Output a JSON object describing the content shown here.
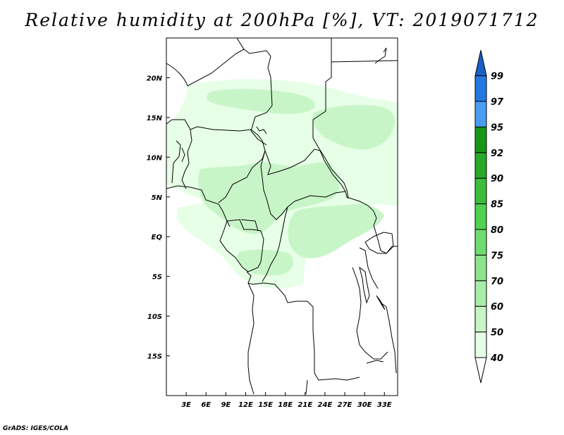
{
  "title": "Relative humidity at 200hPa [%], VT: 2019071712",
  "credit": "GrADS: IGES/COLA",
  "map": {
    "lon_range": [
      0,
      35
    ],
    "lat_range": [
      -20,
      25
    ],
    "lon_ticks": [
      {
        "value": 3,
        "label": "3E"
      },
      {
        "value": 6,
        "label": "6E"
      },
      {
        "value": 9,
        "label": "9E"
      },
      {
        "value": 12,
        "label": "12E"
      },
      {
        "value": 15,
        "label": "15E"
      },
      {
        "value": 18,
        "label": "18E"
      },
      {
        "value": 21,
        "label": "21E"
      },
      {
        "value": 24,
        "label": "24E"
      },
      {
        "value": 27,
        "label": "27E"
      },
      {
        "value": 30,
        "label": "30E"
      },
      {
        "value": 33,
        "label": "33E"
      }
    ],
    "lat_ticks": [
      {
        "value": 20,
        "label": "20N"
      },
      {
        "value": 15,
        "label": "15N"
      },
      {
        "value": 10,
        "label": "10N"
      },
      {
        "value": 5,
        "label": "5N"
      },
      {
        "value": 0,
        "label": "EQ"
      },
      {
        "value": -5,
        "label": "5S"
      },
      {
        "value": -10,
        "label": "10S"
      },
      {
        "value": -15,
        "label": "15S"
      }
    ]
  },
  "colorbar": {
    "levels": [
      {
        "label": "40",
        "color": "#e6ffe6"
      },
      {
        "label": "50",
        "color": "#c8f5c8"
      },
      {
        "label": "60",
        "color": "#a8eca8"
      },
      {
        "label": "70",
        "color": "#8ee48e"
      },
      {
        "label": "75",
        "color": "#70dc70"
      },
      {
        "label": "80",
        "color": "#50d250"
      },
      {
        "label": "85",
        "color": "#3cbe3c"
      },
      {
        "label": "90",
        "color": "#28aa28"
      },
      {
        "label": "92",
        "color": "#189618"
      },
      {
        "label": "95",
        "color": "#4a9cf0"
      },
      {
        "label": "97",
        "color": "#2278e0"
      },
      {
        "label": "99",
        "color": "#1660c8"
      }
    ]
  },
  "colors": {
    "humidity_light": "#e6ffe6",
    "humidity_mid": "#c8f5c8",
    "land_border": "#000000"
  }
}
